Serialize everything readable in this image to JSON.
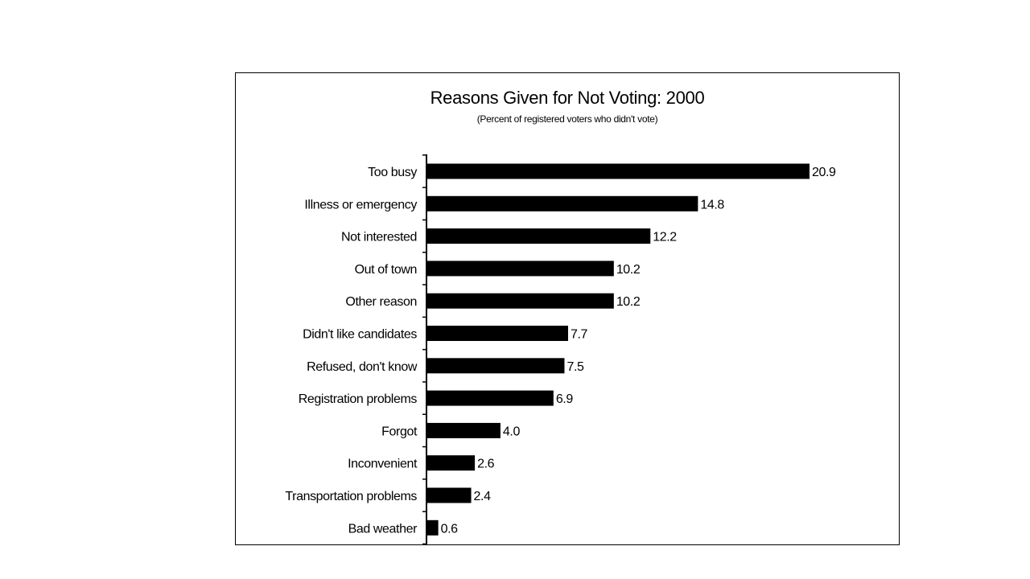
{
  "chart_data": {
    "type": "bar",
    "orientation": "horizontal",
    "title": "Reasons Given for Not Voting: 2000",
    "subtitle": "(Percent of registered voters who didn't vote)",
    "categories": [
      "Too busy",
      "Illness or emergency",
      "Not interested",
      "Out of town",
      "Other reason",
      "Didn't like candidates",
      "Refused, don't know",
      "Registration problems",
      "Forgot",
      "Inconvenient",
      "Transportation problems",
      "Bad weather"
    ],
    "values": [
      20.9,
      14.8,
      12.2,
      10.2,
      10.2,
      7.7,
      7.5,
      6.9,
      4.0,
      2.6,
      2.4,
      0.6
    ],
    "value_labels": [
      "20.9",
      "14.8",
      "12.2",
      "10.2",
      "10.2",
      "7.7",
      "7.5",
      "6.9",
      "4.0",
      "2.6",
      "2.4",
      "0.6"
    ],
    "xlim": [
      0,
      25
    ],
    "bar_color": "#000000",
    "grid": false,
    "legend": "none"
  }
}
